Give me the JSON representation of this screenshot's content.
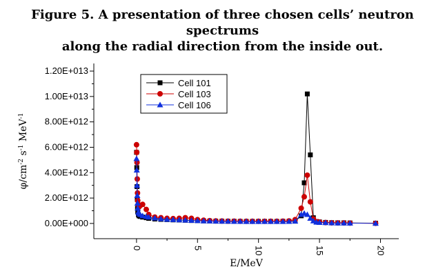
{
  "title_line1": "Figure 5. A presentation of three chosen cells’ neutron spectrums",
  "title_line2": "along the radial direction from the inside out.",
  "chart_data": {
    "type": "line",
    "xlabel": "E/MeV",
    "ylabel_parts": [
      "φ/cm",
      "-2",
      " s",
      "-1",
      " MeV",
      "-1"
    ],
    "xlim": [
      -3.5,
      21.5
    ],
    "ylim": [
      -1200000000000.0,
      12600000000000.0
    ],
    "x_ticks": [
      0,
      5,
      10,
      15,
      20
    ],
    "y_ticks": [
      0,
      2000000000000.0,
      4000000000000.0,
      6000000000000.0,
      8000000000000.0,
      10000000000000.0,
      12000000000000.0
    ],
    "y_tick_labels": [
      "0.00E+000",
      "2.00E+012",
      "4.00E+012",
      "6.00E+012",
      "8.00E+012",
      "1.00E+013",
      "1.20E+013"
    ],
    "legend_placement": "top-left",
    "series": [
      {
        "name": "Cell 101",
        "color": "#000000",
        "marker": "square",
        "x": [
          0.0,
          0.02,
          0.04,
          0.06,
          0.08,
          0.1,
          0.15,
          0.2,
          0.3,
          0.5,
          0.8,
          1.0,
          1.5,
          2.0,
          2.5,
          3.0,
          3.5,
          4.0,
          4.5,
          5.0,
          5.5,
          6.0,
          6.5,
          7.0,
          7.5,
          8.0,
          8.5,
          9.0,
          9.5,
          10.0,
          10.5,
          11.0,
          11.5,
          12.0,
          12.5,
          13.0,
          13.5,
          13.75,
          14.0,
          14.25,
          14.5,
          14.75,
          15.0,
          15.5,
          16.0,
          16.5,
          17.0,
          17.5,
          19.6
        ],
        "y": [
          5600000000000.0,
          4400000000000.0,
          2900000000000.0,
          1900000000000.0,
          1200000000000.0,
          900000000000.0,
          700000000000.0,
          600000000000.0,
          550000000000.0,
          500000000000.0,
          450000000000.0,
          400000000000.0,
          350000000000.0,
          320000000000.0,
          300000000000.0,
          280000000000.0,
          270000000000.0,
          250000000000.0,
          230000000000.0,
          220000000000.0,
          200000000000.0,
          190000000000.0,
          180000000000.0,
          180000000000.0,
          170000000000.0,
          170000000000.0,
          160000000000.0,
          160000000000.0,
          160000000000.0,
          160000000000.0,
          160000000000.0,
          160000000000.0,
          160000000000.0,
          170000000000.0,
          170000000000.0,
          180000000000.0,
          600000000000.0,
          3200000000000.0,
          10200000000000.0,
          5400000000000.0,
          450000000000.0,
          150000000000.0,
          120000000000.0,
          80000000000.0,
          60000000000.0,
          50000000000.0,
          50000000000.0,
          40000000000.0,
          20000000000.0
        ]
      },
      {
        "name": "Cell 103",
        "color": "#cc0000",
        "marker": "circle",
        "x": [
          0.0,
          0.02,
          0.04,
          0.06,
          0.08,
          0.1,
          0.15,
          0.2,
          0.3,
          0.5,
          0.8,
          1.0,
          1.5,
          2.0,
          2.5,
          3.0,
          3.5,
          4.0,
          4.5,
          5.0,
          5.5,
          6.0,
          6.5,
          7.0,
          7.5,
          8.0,
          8.5,
          9.0,
          9.5,
          10.0,
          10.5,
          11.0,
          11.5,
          12.0,
          12.5,
          13.0,
          13.5,
          13.75,
          14.0,
          14.25,
          14.5,
          14.75,
          15.0,
          15.5,
          16.0,
          16.5,
          17.0,
          17.5,
          19.6
        ],
        "y": [
          6200000000000.0,
          5600000000000.0,
          4800000000000.0,
          3500000000000.0,
          2400000000000.0,
          1800000000000.0,
          1500000000000.0,
          1300000000000.0,
          1400000000000.0,
          1500000000000.0,
          1100000000000.0,
          700000000000.0,
          500000000000.0,
          450000000000.0,
          400000000000.0,
          380000000000.0,
          400000000000.0,
          450000000000.0,
          400000000000.0,
          300000000000.0,
          250000000000.0,
          220000000000.0,
          200000000000.0,
          190000000000.0,
          180000000000.0,
          180000000000.0,
          170000000000.0,
          170000000000.0,
          170000000000.0,
          170000000000.0,
          170000000000.0,
          170000000000.0,
          170000000000.0,
          180000000000.0,
          200000000000.0,
          300000000000.0,
          1200000000000.0,
          2100000000000.0,
          3800000000000.0,
          1700000000000.0,
          350000000000.0,
          140000000000.0,
          110000000000.0,
          70000000000.0,
          50000000000.0,
          40000000000.0,
          40000000000.0,
          30000000000.0,
          10000000000.0
        ]
      },
      {
        "name": "Cell 106",
        "color": "#1030dd",
        "marker": "triangle",
        "x": [
          0.0,
          0.02,
          0.04,
          0.06,
          0.08,
          0.1,
          0.15,
          0.2,
          0.3,
          0.5,
          0.8,
          1.0,
          1.5,
          2.0,
          2.5,
          3.0,
          3.5,
          4.0,
          4.5,
          5.0,
          5.5,
          6.0,
          6.5,
          7.0,
          7.5,
          8.0,
          8.5,
          9.0,
          9.5,
          10.0,
          10.5,
          11.0,
          11.5,
          12.0,
          12.5,
          13.0,
          13.5,
          13.75,
          14.0,
          14.25,
          14.5,
          14.75,
          15.0,
          15.5,
          16.0,
          16.5,
          17.0,
          17.5,
          19.6
        ],
        "y": [
          5100000000000.0,
          4200000000000.0,
          3000000000000.0,
          2200000000000.0,
          1600000000000.0,
          1200000000000.0,
          900000000000.0,
          800000000000.0,
          700000000000.0,
          600000000000.0,
          550000000000.0,
          500000000000.0,
          420000000000.0,
          360000000000.0,
          320000000000.0,
          300000000000.0,
          280000000000.0,
          260000000000.0,
          240000000000.0,
          220000000000.0,
          200000000000.0,
          190000000000.0,
          180000000000.0,
          170000000000.0,
          170000000000.0,
          160000000000.0,
          160000000000.0,
          150000000000.0,
          150000000000.0,
          150000000000.0,
          150000000000.0,
          150000000000.0,
          150000000000.0,
          150000000000.0,
          160000000000.0,
          180000000000.0,
          700000000000.0,
          800000000000.0,
          700000000000.0,
          400000000000.0,
          200000000000.0,
          100000000000.0,
          80000000000.0,
          60000000000.0,
          40000000000.0,
          30000000000.0,
          30000000000.0,
          20000000000.0,
          10000000000.0
        ]
      }
    ]
  }
}
